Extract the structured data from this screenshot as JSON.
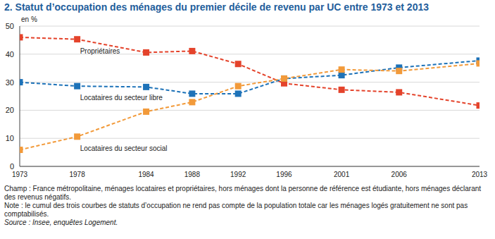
{
  "chart_data": {
    "type": "line",
    "title": "2. Statut d’occupation des ménages du premier décile de revenu par UC entre 1973 et 2013",
    "y_label": "en %",
    "x": [
      1973,
      1978,
      1984,
      1988,
      1992,
      1996,
      2001,
      2006,
      2013
    ],
    "xlim": [
      1973,
      2013
    ],
    "xticks": [
      1973,
      1978,
      1984,
      1988,
      1992,
      1996,
      2001,
      2006,
      2013
    ],
    "ylim": [
      0,
      50
    ],
    "yticks": [
      0,
      10,
      20,
      30,
      40,
      50
    ],
    "grid": true,
    "marker": "square",
    "line_style": "dashed",
    "series": [
      {
        "name": "Propriétaires",
        "color": "#e4432b",
        "values": [
          46,
          45.3,
          40.6,
          41.1,
          36.5,
          29.6,
          27.3,
          26.4,
          21.7
        ]
      },
      {
        "name": "Locataires du secteur libre",
        "color": "#1d72b8",
        "values": [
          30,
          28.6,
          28.3,
          25.9,
          25.9,
          31.3,
          32.5,
          35.2,
          37.7
        ]
      },
      {
        "name": "Locataires du secteur social",
        "color": "#f29a3a",
        "values": [
          5.9,
          10.6,
          19.5,
          22.9,
          28.6,
          31.3,
          34.5,
          34,
          36.7
        ]
      }
    ],
    "footnotes": [
      "Champ : France métropolitaine, ménages locataires et propriétaires, hors ménages dont la personne de référence est étudiante, hors ménages déclarant des revenus négatifs.",
      "Note : le cumul des trois courbes de statuts d’occupation ne rend pas compte de la population totale car les ménages logés gratuitement ne sont pas comptabilisés.",
      "Source : Insee, enquêtes Logement."
    ]
  }
}
